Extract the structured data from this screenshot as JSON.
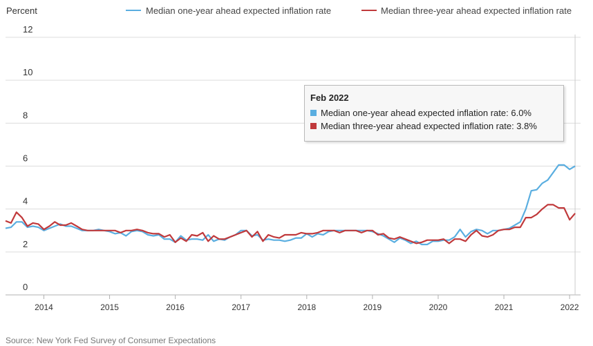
{
  "chart_data": {
    "type": "line",
    "ylabel": "Percent",
    "xlabel": "",
    "ylim": [
      0,
      12
    ],
    "yticks": [
      "0",
      "2",
      "4",
      "6",
      "8",
      "10",
      "12"
    ],
    "xticks": [
      "2014",
      "2015",
      "2016",
      "2017",
      "2018",
      "2019",
      "2020",
      "2021",
      "2022"
    ],
    "xlim": [
      "2013-06",
      "2022-03"
    ],
    "grid": "horizontal",
    "legend_position": "top",
    "x": [
      "2013-06",
      "2013-07",
      "2013-08",
      "2013-09",
      "2013-10",
      "2013-11",
      "2013-12",
      "2014-01",
      "2014-02",
      "2014-03",
      "2014-04",
      "2014-05",
      "2014-06",
      "2014-07",
      "2014-08",
      "2014-09",
      "2014-10",
      "2014-11",
      "2014-12",
      "2015-01",
      "2015-02",
      "2015-03",
      "2015-04",
      "2015-05",
      "2015-06",
      "2015-07",
      "2015-08",
      "2015-09",
      "2015-10",
      "2015-11",
      "2015-12",
      "2016-01",
      "2016-02",
      "2016-03",
      "2016-04",
      "2016-05",
      "2016-06",
      "2016-07",
      "2016-08",
      "2016-09",
      "2016-10",
      "2016-11",
      "2016-12",
      "2017-01",
      "2017-02",
      "2017-03",
      "2017-04",
      "2017-05",
      "2017-06",
      "2017-07",
      "2017-08",
      "2017-09",
      "2017-10",
      "2017-11",
      "2017-12",
      "2018-01",
      "2018-02",
      "2018-03",
      "2018-04",
      "2018-05",
      "2018-06",
      "2018-07",
      "2018-08",
      "2018-09",
      "2018-10",
      "2018-11",
      "2018-12",
      "2019-01",
      "2019-02",
      "2019-03",
      "2019-04",
      "2019-05",
      "2019-06",
      "2019-07",
      "2019-08",
      "2019-09",
      "2019-10",
      "2019-11",
      "2019-12",
      "2020-01",
      "2020-02",
      "2020-03",
      "2020-04",
      "2020-05",
      "2020-06",
      "2020-07",
      "2020-08",
      "2020-09",
      "2020-10",
      "2020-11",
      "2020-12",
      "2021-01",
      "2021-02",
      "2021-03",
      "2021-04",
      "2021-05",
      "2021-06",
      "2021-07",
      "2021-08",
      "2021-09",
      "2021-10",
      "2021-11",
      "2021-12",
      "2022-01",
      "2022-02"
    ],
    "series": [
      {
        "name": "Median one-year ahead expected inflation rate",
        "color": "#5aaee0",
        "values": [
          3.1,
          3.15,
          3.4,
          3.4,
          3.15,
          3.2,
          3.15,
          3.0,
          3.1,
          3.2,
          3.3,
          3.2,
          3.2,
          3.1,
          3.0,
          3.0,
          3.0,
          3.05,
          3.0,
          2.95,
          2.85,
          2.9,
          2.75,
          2.95,
          3.0,
          2.95,
          2.8,
          2.75,
          2.8,
          2.6,
          2.6,
          2.45,
          2.75,
          2.55,
          2.6,
          2.6,
          2.55,
          2.8,
          2.5,
          2.6,
          2.55,
          2.7,
          2.8,
          3.0,
          3.0,
          2.75,
          2.8,
          2.55,
          2.6,
          2.55,
          2.55,
          2.5,
          2.55,
          2.65,
          2.65,
          2.85,
          2.7,
          2.85,
          2.8,
          2.95,
          3.0,
          3.0,
          3.0,
          3.0,
          3.0,
          3.0,
          3.0,
          2.95,
          2.85,
          2.75,
          2.6,
          2.45,
          2.65,
          2.55,
          2.4,
          2.5,
          2.35,
          2.35,
          2.5,
          2.5,
          2.55,
          2.55,
          2.7,
          3.05,
          2.7,
          2.95,
          3.05,
          3.0,
          2.85,
          3.0,
          3.0,
          3.05,
          3.1,
          3.25,
          3.4,
          4.0,
          4.85,
          4.9,
          5.2,
          5.35,
          5.7,
          6.05,
          6.05,
          5.85,
          6.0
        ]
      },
      {
        "name": "Median three-year ahead expected inflation rate",
        "color": "#c0393b",
        "values": [
          3.45,
          3.35,
          3.85,
          3.6,
          3.2,
          3.35,
          3.3,
          3.05,
          3.2,
          3.4,
          3.25,
          3.25,
          3.35,
          3.2,
          3.05,
          3.0,
          3.0,
          3.0,
          3.0,
          3.0,
          3.0,
          2.9,
          3.0,
          3.0,
          3.05,
          3.0,
          2.9,
          2.85,
          2.85,
          2.7,
          2.8,
          2.45,
          2.65,
          2.5,
          2.8,
          2.75,
          2.9,
          2.5,
          2.75,
          2.6,
          2.6,
          2.7,
          2.8,
          2.9,
          3.0,
          2.7,
          2.95,
          2.5,
          2.8,
          2.7,
          2.65,
          2.8,
          2.8,
          2.8,
          2.9,
          2.85,
          2.85,
          2.9,
          3.0,
          3.0,
          3.0,
          2.9,
          3.0,
          3.0,
          3.0,
          2.9,
          3.0,
          3.0,
          2.8,
          2.85,
          2.65,
          2.6,
          2.7,
          2.6,
          2.5,
          2.4,
          2.45,
          2.55,
          2.55,
          2.55,
          2.6,
          2.4,
          2.6,
          2.6,
          2.5,
          2.8,
          3.0,
          2.75,
          2.7,
          2.8,
          3.0,
          3.05,
          3.05,
          3.15,
          3.15,
          3.6,
          3.6,
          3.75,
          4.0,
          4.2,
          4.2,
          4.05,
          4.05,
          3.5,
          3.8
        ]
      }
    ],
    "tooltip": {
      "title": "Feb 2022",
      "rows": [
        "Median one-year ahead expected inflation rate: 6.0%",
        "Median three-year ahead expected inflation rate: 3.8%"
      ]
    },
    "source": "Source: New York Fed Survey of Consumer Expectations"
  }
}
